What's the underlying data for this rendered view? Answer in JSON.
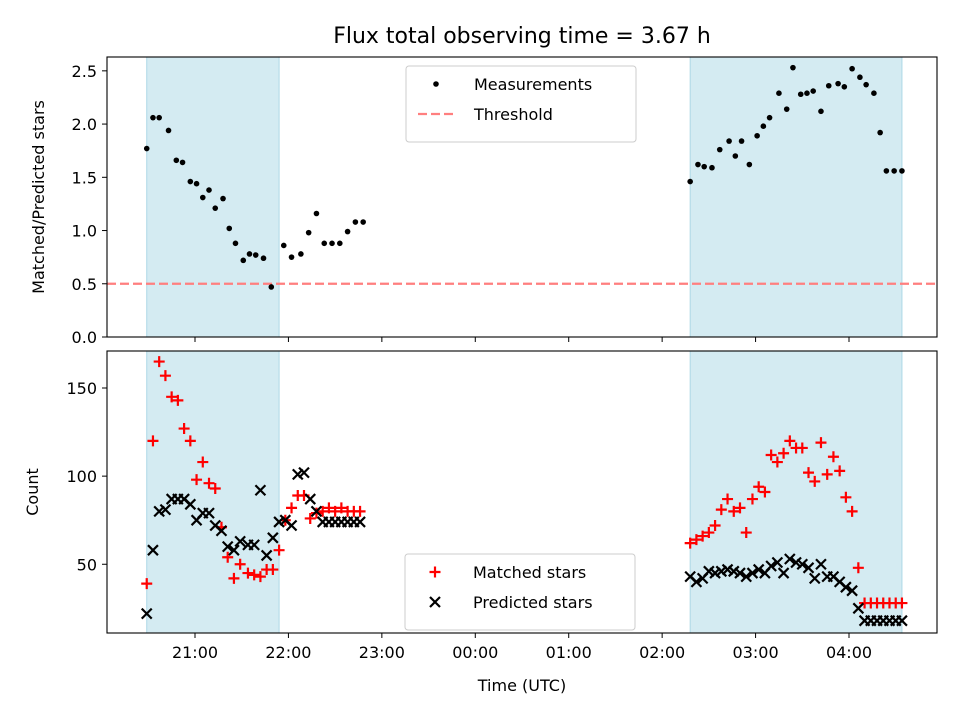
{
  "figure": {
    "title": "Flux total observing time = 3.67 h"
  },
  "chart_data": [
    {
      "type": "scatter",
      "title": "Flux total observing time = 3.67 h",
      "xlabel": "",
      "ylabel": "Matched/Predicted stars",
      "ylim": [
        0,
        2.63
      ],
      "yticks": [
        0.0,
        0.5,
        1.0,
        1.5,
        2.0,
        2.5
      ],
      "ytick_labels": [
        "0.0",
        "0.5",
        "1.0",
        "1.5",
        "2.0",
        "2.5"
      ],
      "legend": {
        "placement": "top-center",
        "entries": [
          "Measurements",
          "Threshold"
        ]
      },
      "shaded_intervals": [
        [
          "20:29",
          "21:54"
        ],
        [
          "02:18",
          "04:34"
        ]
      ],
      "shade_color": "#add8e6",
      "threshold": {
        "name": "Threshold",
        "value": 0.5,
        "color": "#ff7f7f",
        "style": "dashed"
      },
      "series": [
        {
          "name": "Measurements",
          "color": "#000000",
          "marker": "dot",
          "x": [
            "20:29",
            "20:33",
            "20:37",
            "20:43",
            "20:48",
            "20:52",
            "20:57",
            "21:01",
            "21:05",
            "21:09",
            "21:13",
            "21:18",
            "21:22",
            "21:26",
            "21:31",
            "21:35",
            "21:39",
            "21:44",
            "21:49",
            "21:57",
            "22:02",
            "22:08",
            "22:13",
            "22:18",
            "22:23",
            "22:28",
            "22:33",
            "22:38",
            "22:43",
            "22:48",
            "02:18",
            "02:23",
            "02:27",
            "02:32",
            "02:37",
            "02:43",
            "02:47",
            "02:51",
            "02:56",
            "03:01",
            "03:05",
            "03:09",
            "03:15",
            "03:20",
            "03:24",
            "03:29",
            "03:33",
            "03:37",
            "03:42",
            "03:47",
            "03:53",
            "03:57",
            "04:02",
            "04:07",
            "04:11",
            "04:16",
            "04:20",
            "04:24",
            "04:29",
            "04:34"
          ],
          "y": [
            1.77,
            2.06,
            2.06,
            1.94,
            1.66,
            1.64,
            1.46,
            1.44,
            1.31,
            1.38,
            1.21,
            1.3,
            1.02,
            0.88,
            0.72,
            0.78,
            0.77,
            0.74,
            0.47,
            0.86,
            0.75,
            0.78,
            0.98,
            1.16,
            0.88,
            0.88,
            0.88,
            0.99,
            1.08,
            1.08,
            1.46,
            1.62,
            1.6,
            1.59,
            1.76,
            1.84,
            1.7,
            1.84,
            1.62,
            1.89,
            1.98,
            2.06,
            2.29,
            2.14,
            2.53,
            2.28,
            2.29,
            2.31,
            2.12,
            2.36,
            2.38,
            2.35,
            2.52,
            2.44,
            2.37,
            2.29,
            1.92,
            1.56,
            1.56,
            1.56
          ]
        }
      ]
    },
    {
      "type": "scatter",
      "title": "",
      "xlabel": "Time (UTC)",
      "ylabel": "Count",
      "ylim": [
        11,
        171
      ],
      "yticks": [
        50,
        100,
        150
      ],
      "ytick_labels": [
        "50",
        "100",
        "150"
      ],
      "xticks": [
        "21:00",
        "22:00",
        "23:00",
        "00:00",
        "01:00",
        "02:00",
        "03:00",
        "04:00"
      ],
      "legend": {
        "placement": "bottom-center",
        "entries": [
          "Matched stars",
          "Predicted stars"
        ]
      },
      "shaded_intervals": [
        [
          "20:29",
          "21:54"
        ],
        [
          "02:18",
          "04:34"
        ]
      ],
      "shade_color": "#add8e6",
      "series": [
        {
          "name": "Matched stars",
          "color": "#ff0000",
          "marker": "plus",
          "x": [
            "20:29",
            "20:33",
            "20:37",
            "20:41",
            "20:45",
            "20:49",
            "20:53",
            "20:57",
            "21:01",
            "21:05",
            "21:09",
            "21:13",
            "21:17",
            "21:21",
            "21:25",
            "21:29",
            "21:34",
            "21:38",
            "21:42",
            "21:46",
            "21:50",
            "21:54",
            "21:58",
            "22:02",
            "22:06",
            "22:10",
            "22:14",
            "22:18",
            "22:22",
            "22:26",
            "22:30",
            "22:34",
            "22:38",
            "22:42",
            "22:46",
            "02:18",
            "02:22",
            "02:26",
            "02:30",
            "02:34",
            "02:38",
            "02:42",
            "02:46",
            "02:50",
            "02:54",
            "02:58",
            "03:02",
            "03:06",
            "03:10",
            "03:14",
            "03:18",
            "03:22",
            "03:26",
            "03:30",
            "03:34",
            "03:38",
            "03:42",
            "03:46",
            "03:50",
            "03:54",
            "03:58",
            "04:02",
            "04:06",
            "04:10",
            "04:14",
            "04:18",
            "04:22",
            "04:26",
            "04:30",
            "04:34"
          ],
          "y": [
            39,
            120,
            165,
            157,
            145,
            143,
            127,
            120,
            98,
            108,
            96,
            93,
            71,
            54,
            42,
            50,
            45,
            44,
            43,
            47,
            47,
            58,
            75,
            82,
            89,
            89,
            76,
            79,
            80,
            82,
            80,
            82,
            80,
            80,
            80,
            62,
            64,
            66,
            68,
            72,
            81,
            87,
            80,
            82,
            68,
            87,
            94,
            91,
            112,
            108,
            113,
            120,
            116,
            116,
            102,
            97,
            119,
            101,
            111,
            103,
            88,
            80,
            48,
            28,
            28,
            28,
            28,
            28,
            28,
            28
          ]
        },
        {
          "name": "Predicted stars",
          "color": "#000000",
          "marker": "x",
          "x": [
            "20:29",
            "20:33",
            "20:37",
            "20:41",
            "20:45",
            "20:49",
            "20:53",
            "20:57",
            "21:01",
            "21:05",
            "21:09",
            "21:13",
            "21:17",
            "21:21",
            "21:25",
            "21:29",
            "21:34",
            "21:38",
            "21:42",
            "21:46",
            "21:50",
            "21:54",
            "21:58",
            "22:02",
            "22:06",
            "22:10",
            "22:14",
            "22:18",
            "22:22",
            "22:26",
            "22:30",
            "22:34",
            "22:38",
            "22:42",
            "22:46",
            "02:18",
            "02:22",
            "02:26",
            "02:30",
            "02:34",
            "02:38",
            "02:42",
            "02:46",
            "02:50",
            "02:54",
            "02:58",
            "03:02",
            "03:06",
            "03:10",
            "03:14",
            "03:18",
            "03:22",
            "03:26",
            "03:30",
            "03:34",
            "03:38",
            "03:42",
            "03:46",
            "03:50",
            "03:54",
            "03:58",
            "04:02",
            "04:06",
            "04:10",
            "04:14",
            "04:18",
            "04:22",
            "04:26",
            "04:30",
            "04:34"
          ],
          "y": [
            22,
            58,
            80,
            81,
            87,
            87,
            87,
            84,
            75,
            79,
            79,
            72,
            69,
            60,
            58,
            63,
            61,
            61,
            92,
            55,
            65,
            74,
            75,
            72,
            101,
            102,
            87,
            80,
            74,
            74,
            74,
            74,
            74,
            74,
            74,
            43,
            40,
            42,
            46,
            45,
            46,
            47,
            46,
            45,
            43,
            45,
            47,
            45,
            49,
            51,
            45,
            53,
            51,
            50,
            48,
            42,
            50,
            43,
            43,
            40,
            37,
            35,
            25,
            18,
            18,
            18,
            18,
            18,
            18,
            18
          ]
        }
      ]
    }
  ]
}
